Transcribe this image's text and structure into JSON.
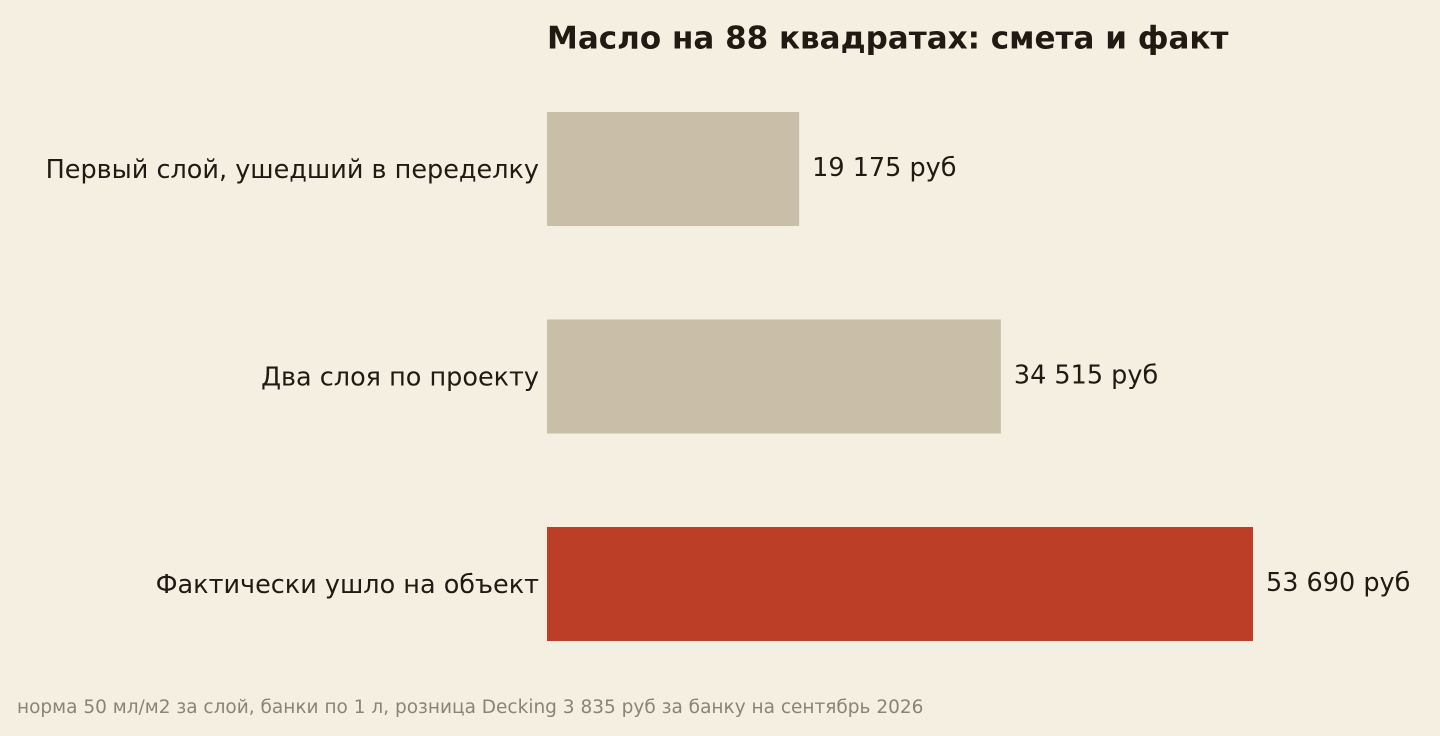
{
  "chart_data": {
    "type": "barh",
    "title": "Масло на 88 квадратах: смета и факт",
    "categories": [
      "Первый слой, ушедший в переделку",
      "Два слоя по проекту",
      "Фактически ушло на объект"
    ],
    "values": [
      19175,
      34515,
      53690
    ],
    "value_labels": [
      "19 175 руб",
      "34 515 руб",
      "53 690 руб"
    ],
    "colors": [
      "#c9bfa8",
      "#c9bfa8",
      "#bd3e27"
    ],
    "note": "норма 50 мл/м2 за слой, банки по 1 л, розница Decking 3 835 руб за банку на сентябрь 2026"
  }
}
